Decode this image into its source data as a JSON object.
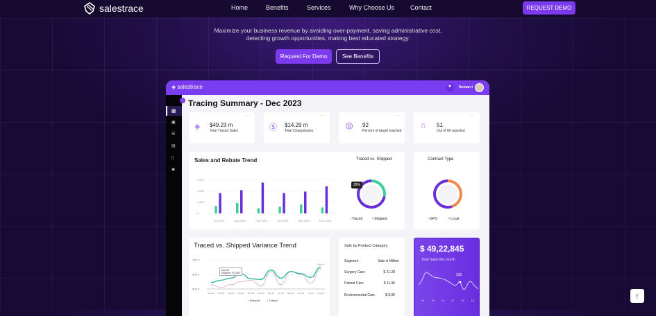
{
  "nav": {
    "brand": "salestrace",
    "links": [
      "Home",
      "Benefits",
      "Services",
      "Why Choose Us",
      "Contact"
    ],
    "cta": "REQUEST DEMO"
  },
  "hero": {
    "line1": "Maximize your business revenue by avoiding over-payment, saving administrative cost,",
    "line2": "detecting growth opportunities, making best educated strategy.",
    "primary": "Request For Demo",
    "secondary": "See Benefits"
  },
  "dashboard": {
    "brand": "salestrace",
    "user": "Noman t",
    "title": "Tracing Summary - Dec 2023",
    "kpis": [
      {
        "value": "$49.23 m",
        "label": "Total Traced Sales"
      },
      {
        "value": "$14.29 m",
        "label": "Total Chargebacks"
      },
      {
        "value": "92",
        "label": "Percent of target reached"
      },
      {
        "value": "51",
        "label": "Out of 60 reported"
      }
    ],
    "more": "···",
    "traced_title": "Traced vs. Shipped",
    "traced_pct": "28%",
    "traced_legend": [
      "Traced",
      "Shipped"
    ],
    "contract_title": "Contract Type",
    "contract_legend": [
      "GPO",
      "Local"
    ],
    "category": {
      "title": "Sale by Product Category",
      "headers": [
        "Segment",
        "Sale in Million"
      ],
      "rows": [
        [
          "Surgery Care",
          "$ 21.28"
        ],
        [
          "Patient Care",
          "$ 11.96"
        ],
        [
          "Environmental Care",
          "$ 9.06"
        ]
      ]
    },
    "total": {
      "value": "$ 49,22,845",
      "label": "Total Sales this month",
      "peak": "232",
      "days": [
        "14",
        "15",
        "16",
        "17",
        "18",
        "19"
      ]
    },
    "colors": {
      "accent": "#7a3cf0",
      "teal": "#3ccf9c",
      "orange": "#f08a4b"
    }
  },
  "chart_data": [
    {
      "type": "bar",
      "title": "Sales and Rebate Trend",
      "categories": [
        "Jul 2023",
        "Aug 2023",
        "Sep 2023",
        "Oct 2023",
        "Nov 2023",
        "Dec 2023"
      ],
      "yticks": [
        "0",
        "1,500",
        "3,000",
        "4,500"
      ],
      "ylim": [
        0,
        4500
      ],
      "series": [
        {
          "name": "Traced",
          "values": [
            1000,
            1400,
            700,
            900,
            1200,
            800
          ]
        },
        {
          "name": "Shipped",
          "values": [
            2700,
            3100,
            4100,
            2700,
            2900,
            3600
          ]
        }
      ]
    },
    {
      "type": "pie",
      "title": "Traced vs. Shipped",
      "values": [
        28,
        72
      ],
      "labels": [
        "Traced",
        "Shipped"
      ]
    },
    {
      "type": "pie",
      "title": "Contract Type",
      "values": [
        45,
        55
      ],
      "labels": [
        "GPO",
        "Local"
      ]
    },
    {
      "type": "line",
      "title": "Traced vs. Shipped Variance Trend",
      "x": [
        "Sep-22",
        "Oct-22",
        "Nov-22",
        "Dec-22",
        "Jan-23",
        "Feb-23",
        "Mar-23",
        "Apr-23",
        "May-23",
        "Jun-23",
        "Jul-23",
        "Aug-23"
      ],
      "yticks": [
        "500 K",
        "600 K",
        "700 K"
      ],
      "ylim": [
        500,
        700
      ],
      "series": [
        {
          "name": "Shipped",
          "values": [
            545,
            560,
            575,
            605,
            570,
            565,
            630,
            575,
            620,
            605,
            580,
            650
          ]
        },
        {
          "name": "Traced",
          "values": [
            530,
            510,
            530,
            550,
            560,
            520,
            620,
            530,
            620,
            600,
            540,
            640
          ]
        }
      ],
      "tooltip": {
        "title": "Nov-22",
        "text": "Shipped: 575,867"
      },
      "end_label": "Traced"
    }
  ]
}
